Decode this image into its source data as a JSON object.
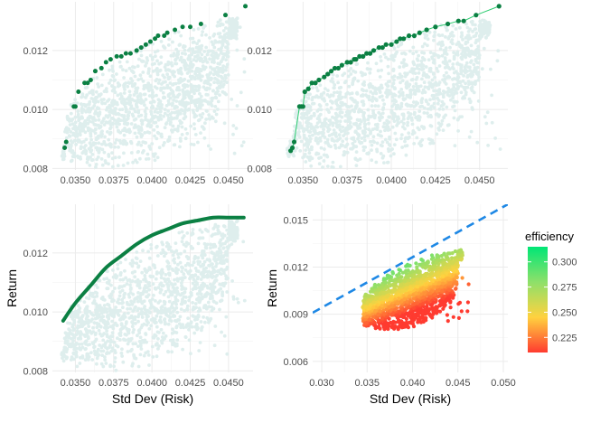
{
  "chart_data": [
    {
      "panel": "top-left",
      "type": "scatter",
      "title": "",
      "xlabel": "",
      "ylabel": "",
      "xlim": [
        0.0335,
        0.0466
      ],
      "ylim": [
        0.00795,
        0.01365
      ],
      "x_ticks": [
        0.035,
        0.0375,
        0.04,
        0.0425,
        0.045
      ],
      "x_tick_labels": [
        "0.0350",
        "0.0375",
        "0.0400",
        "0.0425",
        "0.0450"
      ],
      "y_ticks": [
        0.008,
        0.01,
        0.012
      ],
      "y_tick_labels": [
        "0.008",
        "0.010",
        "0.012"
      ],
      "grid": true,
      "cloud_color": "#deeeed",
      "point_color": "#0b8043",
      "series": [
        {
          "name": "simulated portfolios (cloud)",
          "type": "region",
          "upper_boundary": [
            [
              0.0342,
              0.0087
            ],
            [
              0.0344,
              0.0096
            ],
            [
              0.0346,
              0.0101
            ],
            [
              0.0352,
              0.0106
            ],
            [
              0.036,
              0.011
            ],
            [
              0.037,
              0.0114
            ],
            [
              0.0378,
              0.0117
            ],
            [
              0.0385,
              0.0119
            ],
            [
              0.0395,
              0.0122
            ],
            [
              0.0405,
              0.0124
            ],
            [
              0.0418,
              0.0127
            ],
            [
              0.043,
              0.0129
            ],
            [
              0.0442,
              0.013
            ],
            [
              0.0448,
              0.0131
            ]
          ],
          "lower_boundary": [
            [
              0.0344,
              0.0083
            ],
            [
              0.0352,
              0.0081
            ],
            [
              0.0365,
              0.008
            ],
            [
              0.038,
              0.008
            ],
            [
              0.039,
              0.0081
            ],
            [
              0.04,
              0.0082
            ],
            [
              0.041,
              0.0084
            ],
            [
              0.042,
              0.0087
            ],
            [
              0.043,
              0.0091
            ],
            [
              0.044,
              0.0096
            ],
            [
              0.0448,
              0.0103
            ],
            [
              0.045,
              0.0112
            ],
            [
              0.0449,
              0.0124
            ]
          ]
        },
        {
          "name": "frontier points",
          "type": "scatter",
          "x": [
            0.0343,
            0.0344,
            0.0349,
            0.035,
            0.0352,
            0.0356,
            0.0358,
            0.036,
            0.0363,
            0.0367,
            0.037,
            0.0373,
            0.0377,
            0.038,
            0.0383,
            0.0386,
            0.039,
            0.0393,
            0.0396,
            0.0399,
            0.0402,
            0.0404,
            0.0408,
            0.041,
            0.0415,
            0.042,
            0.0425,
            0.0432,
            0.0448,
            0.0461
          ],
          "y": [
            0.0087,
            0.0089,
            0.0101,
            0.0101,
            0.0106,
            0.0109,
            0.0109,
            0.011,
            0.0113,
            0.0114,
            0.0116,
            0.0117,
            0.0118,
            0.0118,
            0.0119,
            0.0119,
            0.012,
            0.0121,
            0.0122,
            0.0123,
            0.0124,
            0.0125,
            0.0125,
            0.0126,
            0.0127,
            0.0128,
            0.0128,
            0.0129,
            0.0132,
            0.0135
          ]
        }
      ]
    },
    {
      "panel": "top-right",
      "type": "line",
      "title": "",
      "xlabel": "",
      "ylabel": "",
      "xlim": [
        0.0335,
        0.0466
      ],
      "ylim": [
        0.00795,
        0.01365
      ],
      "x_ticks": [
        0.035,
        0.0375,
        0.04,
        0.0425,
        0.045
      ],
      "x_tick_labels": [
        "0.0350",
        "0.0375",
        "0.0400",
        "0.0425",
        "0.0450"
      ],
      "y_ticks": [
        0.008,
        0.01,
        0.012
      ],
      "y_tick_labels": [
        "0.008",
        "0.010",
        "0.012"
      ],
      "grid": true,
      "cloud_color": "#deeeed",
      "point_color": "#0b8043",
      "line_color": "#2ecc71",
      "series": [
        {
          "name": "efficient frontier (connected points)",
          "type": "line+points",
          "x": [
            0.0343,
            0.0344,
            0.0345,
            0.0348,
            0.0349,
            0.035,
            0.0351,
            0.0353,
            0.0355,
            0.0357,
            0.0359,
            0.0362,
            0.0364,
            0.0366,
            0.0368,
            0.037,
            0.0372,
            0.0375,
            0.0377,
            0.0379,
            0.038,
            0.0382,
            0.0384,
            0.0386,
            0.0388,
            0.039,
            0.0393,
            0.0395,
            0.0397,
            0.04,
            0.0403,
            0.0405,
            0.0407,
            0.041,
            0.0413,
            0.0416,
            0.042,
            0.0425,
            0.0432,
            0.0438,
            0.0441,
            0.0448,
            0.0461
          ],
          "y": [
            0.0086,
            0.0087,
            0.0089,
            0.0101,
            0.0101,
            0.0101,
            0.0106,
            0.0107,
            0.0109,
            0.0109,
            0.011,
            0.0111,
            0.0112,
            0.0113,
            0.0114,
            0.0114,
            0.0115,
            0.0116,
            0.0116,
            0.0117,
            0.0117,
            0.0118,
            0.0118,
            0.0119,
            0.0119,
            0.012,
            0.0121,
            0.0121,
            0.0122,
            0.0122,
            0.0123,
            0.0124,
            0.0124,
            0.0125,
            0.0125,
            0.0126,
            0.0127,
            0.0128,
            0.0129,
            0.013,
            0.013,
            0.0132,
            0.0135
          ]
        }
      ]
    },
    {
      "panel": "bottom-left",
      "type": "line",
      "title": "",
      "xlabel": "Std Dev (Risk)",
      "ylabel": "Return",
      "xlim": [
        0.0335,
        0.0466
      ],
      "ylim": [
        0.00795,
        0.01365
      ],
      "x_ticks": [
        0.035,
        0.0375,
        0.04,
        0.0425,
        0.045
      ],
      "x_tick_labels": [
        "0.0350",
        "0.0375",
        "0.0400",
        "0.0425",
        "0.0450"
      ],
      "y_ticks": [
        0.008,
        0.01,
        0.012
      ],
      "y_tick_labels": [
        "0.008",
        "0.010",
        "0.012"
      ],
      "grid": true,
      "cloud_color": "#deeeed",
      "line_color": "#0b8043",
      "series": [
        {
          "name": "fitted frontier curve",
          "type": "line",
          "x": [
            0.0342,
            0.035,
            0.036,
            0.037,
            0.038,
            0.039,
            0.04,
            0.041,
            0.042,
            0.043,
            0.044,
            0.045,
            0.046
          ],
          "y": [
            0.0097,
            0.0103,
            0.0109,
            0.0115,
            0.0119,
            0.0123,
            0.0126,
            0.0128,
            0.013,
            0.0131,
            0.0132,
            0.0132,
            0.0132
          ]
        }
      ]
    },
    {
      "panel": "bottom-right",
      "type": "scatter",
      "title": "",
      "xlabel": "Std Dev (Risk)",
      "ylabel": "Return",
      "xlim": [
        0.029,
        0.0505
      ],
      "ylim": [
        0.0053,
        0.016
      ],
      "x_ticks": [
        0.03,
        0.035,
        0.04,
        0.045,
        0.05
      ],
      "x_tick_labels": [
        "0.030",
        "0.035",
        "0.040",
        "0.045",
        "0.050"
      ],
      "y_ticks": [
        0.006,
        0.009,
        0.012,
        0.015
      ],
      "y_tick_labels": [
        "0.006",
        "0.009",
        "0.012",
        "0.015"
      ],
      "grid": true,
      "color_variable": "efficiency",
      "color_range": [
        0.21,
        0.315
      ],
      "line_color": "#1e88e5",
      "series": [
        {
          "name": "portfolios colored by efficiency",
          "type": "scatter-colored",
          "x_range": [
            0.0342,
            0.0461
          ],
          "y_range": [
            0.0077,
            0.0135
          ]
        },
        {
          "name": "capital market line",
          "type": "dashed-line",
          "x": [
            0.029,
            0.0505
          ],
          "y": [
            0.0091,
            0.016
          ]
        }
      ],
      "legend": {
        "title": "efficiency",
        "placement": "right",
        "ticks": [
          0.225,
          0.25,
          0.275,
          0.3
        ],
        "tick_labels": [
          "0.225",
          "0.250",
          "0.275",
          "0.300"
        ],
        "colors": [
          "#ff3b30",
          "#ffd23f",
          "#8ee06a",
          "#00e676"
        ]
      }
    }
  ]
}
